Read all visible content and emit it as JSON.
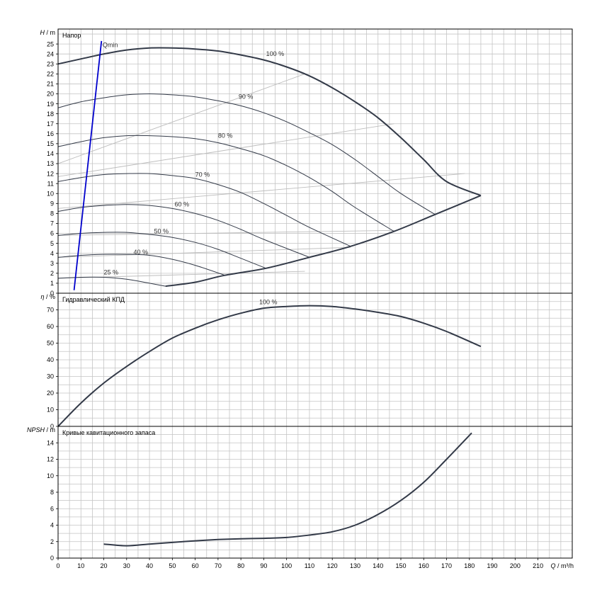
{
  "chart_data": [
    {
      "type": "line",
      "panel": "head",
      "title": "Напор",
      "ylabel_symbol": "H",
      "ylabel_unit": "/ m",
      "xlim": [
        0,
        225
      ],
      "ylim": [
        0,
        26.5
      ],
      "yticks": [
        0,
        1,
        2,
        3,
        4,
        5,
        6,
        7,
        8,
        9,
        10,
        11,
        12,
        13,
        14,
        15,
        16,
        17,
        18,
        19,
        20,
        21,
        22,
        23,
        24,
        25
      ],
      "series": [
        {
          "name": "100 %",
          "label_at": [
            91,
            23.8
          ],
          "bold": true,
          "x": [
            0,
            10,
            20,
            30,
            40,
            50,
            60,
            70,
            80,
            90,
            100,
            110,
            120,
            130,
            140,
            150,
            160,
            170,
            185
          ],
          "y": [
            23.0,
            23.5,
            24.0,
            24.4,
            24.6,
            24.6,
            24.5,
            24.3,
            23.9,
            23.4,
            22.7,
            21.8,
            20.6,
            19.2,
            17.6,
            15.6,
            13.4,
            11.2,
            9.8
          ]
        },
        {
          "name": "90 %",
          "label_at": [
            79,
            19.5
          ],
          "x": [
            0,
            10,
            20,
            30,
            40,
            50,
            60,
            70,
            80,
            90,
            100,
            110,
            120,
            130,
            140,
            150,
            165
          ],
          "y": [
            18.6,
            19.2,
            19.6,
            19.9,
            20.0,
            19.9,
            19.7,
            19.3,
            18.8,
            18.1,
            17.2,
            16.1,
            14.9,
            13.4,
            11.7,
            10.0,
            7.9
          ]
        },
        {
          "name": "80 %",
          "label_at": [
            70,
            15.6
          ],
          "x": [
            0,
            10,
            20,
            30,
            40,
            50,
            60,
            70,
            80,
            90,
            100,
            110,
            120,
            130,
            147
          ],
          "y": [
            14.7,
            15.2,
            15.6,
            15.8,
            15.8,
            15.7,
            15.5,
            15.1,
            14.5,
            13.8,
            12.8,
            11.6,
            10.2,
            8.6,
            6.2
          ]
        },
        {
          "name": "70 %",
          "label_at": [
            60,
            11.7
          ],
          "x": [
            0,
            10,
            20,
            30,
            40,
            50,
            60,
            70,
            80,
            90,
            100,
            110,
            128
          ],
          "y": [
            11.2,
            11.6,
            11.9,
            12.0,
            12.0,
            11.8,
            11.5,
            10.9,
            10.1,
            9.0,
            7.8,
            6.6,
            4.7
          ]
        },
        {
          "name": "60 %",
          "label_at": [
            51,
            8.7
          ],
          "x": [
            0,
            10,
            20,
            30,
            40,
            50,
            60,
            70,
            80,
            90,
            110
          ],
          "y": [
            8.2,
            8.6,
            8.8,
            8.9,
            8.8,
            8.5,
            8.0,
            7.3,
            6.4,
            5.4,
            3.6
          ]
        },
        {
          "name": "50 %",
          "label_at": [
            42,
            6.0
          ],
          "x": [
            0,
            10,
            20,
            30,
            40,
            50,
            60,
            70,
            80,
            91
          ],
          "y": [
            5.8,
            6.0,
            6.1,
            6.1,
            5.9,
            5.6,
            5.1,
            4.4,
            3.5,
            2.5
          ]
        },
        {
          "name": "40 %",
          "label_at": [
            33,
            3.9
          ],
          "x": [
            0,
            10,
            20,
            30,
            40,
            50,
            60,
            73
          ],
          "y": [
            3.6,
            3.8,
            3.9,
            3.9,
            3.8,
            3.4,
            2.8,
            1.8
          ]
        },
        {
          "name": "25 %",
          "label_at": [
            20,
            1.9
          ],
          "x": [
            0,
            10,
            20,
            30,
            40,
            47
          ],
          "y": [
            1.5,
            1.6,
            1.6,
            1.4,
            1.0,
            0.7
          ]
        },
        {
          "name": "",
          "role": "lower envelope",
          "bold": true,
          "x": [
            47,
            60,
            73,
            91,
            110,
            128,
            147,
            165,
            185
          ],
          "y": [
            0.7,
            1.1,
            1.8,
            2.5,
            3.6,
            4.7,
            6.2,
            7.9,
            9.8
          ]
        },
        {
          "name": "Qmin",
          "label_at": [
            19.5,
            24.7
          ],
          "color": "#0000cc",
          "x": [
            7,
            19
          ],
          "y": [
            0.3,
            25.3
          ]
        }
      ],
      "efficiency_lines": [
        {
          "x": [
            0,
            108
          ],
          "y": [
            1.5,
            2.2
          ]
        },
        {
          "x": [
            0,
            128
          ],
          "y": [
            3.6,
            4.6
          ]
        },
        {
          "x": [
            0,
            147
          ],
          "y": [
            5.8,
            6.3
          ]
        },
        {
          "x": [
            0,
            178
          ],
          "y": [
            8.5,
            12.0
          ]
        },
        {
          "x": [
            0,
            147
          ],
          "y": [
            11.7,
            17.0
          ]
        },
        {
          "x": [
            0,
            108
          ],
          "y": [
            13.0,
            22.0
          ]
        }
      ]
    },
    {
      "type": "line",
      "panel": "efficiency",
      "title": "Гидравлический КПД",
      "ylabel_symbol": "η",
      "ylabel_unit": "/ %",
      "xlim": [
        0,
        225
      ],
      "ylim": [
        0,
        80
      ],
      "yticks": [
        0,
        10,
        20,
        30,
        40,
        50,
        60,
        70
      ],
      "series": [
        {
          "name": "100 %",
          "label_at": [
            88,
            73.5
          ],
          "bold": true,
          "x": [
            0,
            10,
            20,
            30,
            40,
            50,
            60,
            70,
            80,
            90,
            100,
            110,
            120,
            130,
            140,
            150,
            160,
            170,
            185
          ],
          "y": [
            0,
            14,
            26,
            36,
            45,
            53,
            59,
            64,
            68,
            71,
            72,
            72.5,
            72,
            70.5,
            68.5,
            66,
            62,
            57,
            48
          ]
        }
      ]
    },
    {
      "type": "line",
      "panel": "npsh",
      "title": "Кривые кавитационного запаса",
      "ylabel_symbol": "NPSH",
      "ylabel_unit": "/ m",
      "xlabel_symbol": "Q",
      "xlabel_unit": "/ m³/h",
      "xlim": [
        0,
        225
      ],
      "ylim": [
        0,
        16
      ],
      "yticks": [
        0,
        2,
        4,
        6,
        8,
        10,
        12,
        14
      ],
      "xticks": [
        0,
        10,
        20,
        30,
        40,
        50,
        60,
        70,
        80,
        90,
        100,
        110,
        120,
        130,
        140,
        150,
        160,
        170,
        180,
        190,
        200,
        210
      ],
      "series": [
        {
          "name": "",
          "bold": true,
          "x": [
            20,
            30,
            40,
            50,
            60,
            70,
            80,
            90,
            100,
            110,
            120,
            130,
            140,
            150,
            160,
            170,
            181
          ],
          "y": [
            1.7,
            1.5,
            1.7,
            1.9,
            2.1,
            2.25,
            2.35,
            2.4,
            2.5,
            2.8,
            3.2,
            4.0,
            5.3,
            7.0,
            9.2,
            12.0,
            15.2
          ]
        }
      ]
    }
  ]
}
